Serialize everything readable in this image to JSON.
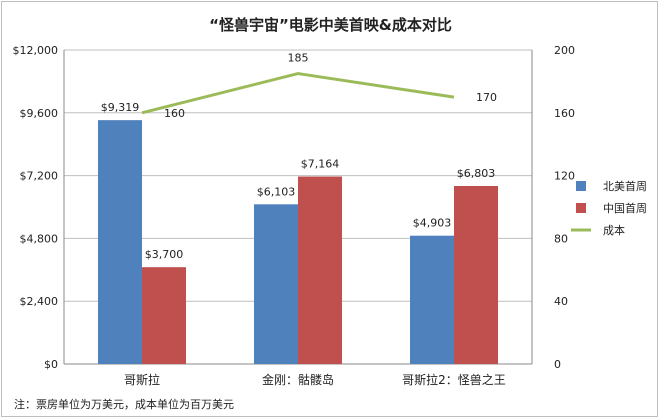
{
  "chart_data": {
    "type": "bar",
    "title": "“怪兽宇宙”电影中美首映&成本对比",
    "note": "注：票房单位为万美元，成本单位为百万美元",
    "categories": [
      "哥斯拉",
      "金刚：骷髅岛",
      "哥斯拉2：怪兽之王"
    ],
    "series": [
      {
        "name": "北美首周",
        "type": "bar",
        "axis": "left",
        "color": "#4f81bd",
        "values": [
          9319,
          6103,
          4903
        ],
        "labels": [
          "$9,319",
          "$6,103",
          "$4,903"
        ]
      },
      {
        "name": "中国首周",
        "type": "bar",
        "axis": "left",
        "color": "#c0504d",
        "values": [
          3700,
          7164,
          6803
        ],
        "labels": [
          "$3,700",
          "$7,164",
          "$6,803"
        ]
      },
      {
        "name": "成本",
        "type": "line",
        "axis": "right",
        "color": "#9bbb59",
        "values": [
          160,
          185,
          170
        ],
        "labels": [
          "160",
          "185",
          "170"
        ]
      }
    ],
    "y_left": {
      "min": 0,
      "max": 12000,
      "ticks": [
        0,
        2400,
        4800,
        7200,
        9600,
        12000
      ],
      "tick_labels": [
        "$0",
        "$2,400",
        "$4,800",
        "$7,200",
        "$9,600",
        "$12,000"
      ]
    },
    "y_right": {
      "min": 0,
      "max": 200,
      "ticks": [
        0,
        40,
        80,
        120,
        160,
        200
      ],
      "tick_labels": [
        "0",
        "40",
        "80",
        "120",
        "160",
        "200"
      ]
    },
    "legend": "right",
    "grid": true
  }
}
